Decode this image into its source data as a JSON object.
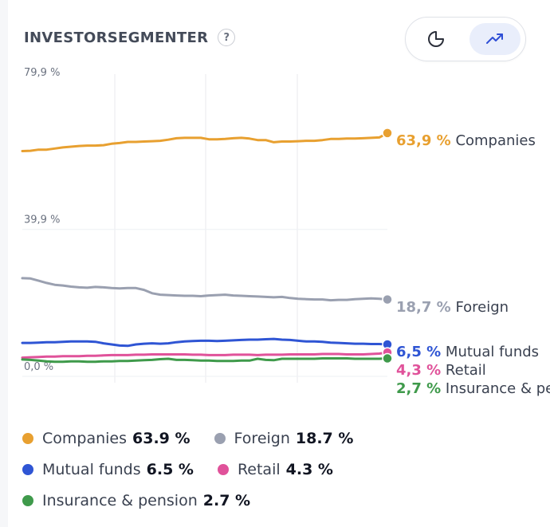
{
  "header": {
    "title": "INVESTORSEGMENTER",
    "help_label": "?"
  },
  "view_toggle": {
    "options": [
      "pie-chart-icon",
      "trend-line-icon"
    ],
    "selected": "trend-line-icon",
    "selected_background": "#e9eefb",
    "icon_color": "#2f4fd6"
  },
  "chart_data": {
    "type": "line",
    "y_tick_labels": [
      "79,9 %",
      "39,9 %",
      "0,0 %"
    ],
    "ylim": [
      0,
      79.9
    ],
    "grid": "vertical gridlines",
    "series": [
      {
        "name": "Companies",
        "color": "#e8a030",
        "end_label_value": "63,9 %",
        "values": [
          59.0,
          59.1,
          59.4,
          59.4,
          59.7,
          60.0,
          60.2,
          60.4,
          60.5,
          60.5,
          60.6,
          61.0,
          61.2,
          61.5,
          61.5,
          61.6,
          61.7,
          61.8,
          62.1,
          62.5,
          62.6,
          62.6,
          62.6,
          62.2,
          62.2,
          62.3,
          62.5,
          62.6,
          62.4,
          62.0,
          62.0,
          61.4,
          61.6,
          61.6,
          61.7,
          61.8,
          61.8,
          62.0,
          62.3,
          62.3,
          62.4,
          62.4,
          62.5,
          62.6,
          62.7,
          63.9
        ]
      },
      {
        "name": "Foreign",
        "color": "#9aa0b0",
        "end_label_value": "18,7 %",
        "values": [
          24.5,
          24.4,
          23.8,
          23.2,
          22.7,
          22.5,
          22.2,
          22.0,
          21.9,
          22.1,
          22.0,
          21.8,
          21.7,
          21.8,
          21.8,
          21.3,
          20.4,
          20.0,
          19.9,
          19.8,
          19.7,
          19.7,
          19.6,
          19.8,
          19.9,
          20.0,
          19.8,
          19.7,
          19.6,
          19.5,
          19.4,
          19.3,
          19.4,
          19.1,
          18.9,
          18.8,
          18.7,
          18.7,
          18.5,
          18.6,
          18.6,
          18.8,
          18.9,
          19.0,
          18.9,
          18.7
        ]
      },
      {
        "name": "Mutual funds",
        "color": "#2f55d4",
        "end_label_value": "6,5 %",
        "values": [
          6.9,
          6.9,
          7.0,
          7.1,
          7.1,
          7.2,
          7.3,
          7.3,
          7.3,
          7.2,
          6.8,
          6.5,
          6.2,
          6.1,
          6.5,
          6.7,
          6.8,
          6.7,
          6.8,
          7.1,
          7.3,
          7.4,
          7.5,
          7.5,
          7.4,
          7.5,
          7.6,
          7.7,
          7.8,
          7.8,
          7.9,
          8.0,
          7.8,
          7.7,
          7.5,
          7.3,
          7.3,
          7.2,
          7.0,
          6.9,
          6.8,
          6.7,
          6.7,
          6.6,
          6.6,
          6.5
        ]
      },
      {
        "name": "Retail",
        "color": "#e0529a",
        "end_label_value": "4,3 %",
        "values": [
          2.9,
          3.0,
          3.1,
          3.2,
          3.2,
          3.3,
          3.3,
          3.3,
          3.4,
          3.4,
          3.5,
          3.6,
          3.6,
          3.6,
          3.7,
          3.7,
          3.8,
          3.8,
          3.8,
          3.8,
          3.8,
          3.7,
          3.7,
          3.6,
          3.6,
          3.6,
          3.7,
          3.7,
          3.7,
          3.6,
          3.7,
          3.7,
          3.7,
          3.8,
          3.8,
          3.8,
          3.8,
          3.9,
          3.9,
          3.9,
          3.8,
          3.8,
          3.8,
          3.9,
          4.0,
          4.3
        ]
      },
      {
        "name": "Insurance & pension",
        "color": "#3f9a4b",
        "end_label_value": "2,7 %",
        "values": [
          2.4,
          2.3,
          2.1,
          1.9,
          1.8,
          1.8,
          1.9,
          1.9,
          1.8,
          1.8,
          1.9,
          1.9,
          2.0,
          2.0,
          2.1,
          2.2,
          2.3,
          2.5,
          2.6,
          2.3,
          2.3,
          2.2,
          2.1,
          2.1,
          2.0,
          2.0,
          2.0,
          2.1,
          2.1,
          2.6,
          2.3,
          2.2,
          2.6,
          2.6,
          2.6,
          2.6,
          2.6,
          2.7,
          2.7,
          2.7,
          2.7,
          2.6,
          2.6,
          2.6,
          2.6,
          2.7
        ]
      }
    ]
  },
  "end_labels": {
    "companies": {
      "value": "63,9 %",
      "name": "Companies"
    },
    "foreign": {
      "value": "18,7 %",
      "name": "Foreign"
    },
    "mutual_funds": {
      "value": "6,5 %",
      "name": "Mutual funds"
    },
    "retail": {
      "value": "4,3 %",
      "name": "Retail"
    },
    "insurance": {
      "value": "2,7 %",
      "name": "Insurance & pe"
    }
  },
  "legend": [
    {
      "name": "Companies",
      "value": "63.9 %",
      "color": "#e8a030"
    },
    {
      "name": "Foreign",
      "value": "18.7 %",
      "color": "#9aa0b0"
    },
    {
      "name": "Mutual funds",
      "value": "6.5 %",
      "color": "#2f55d4"
    },
    {
      "name": "Retail",
      "value": "4.3 %",
      "color": "#e0529a"
    },
    {
      "name": "Insurance & pension",
      "value": "2.7 %",
      "color": "#3f9a4b"
    }
  ]
}
